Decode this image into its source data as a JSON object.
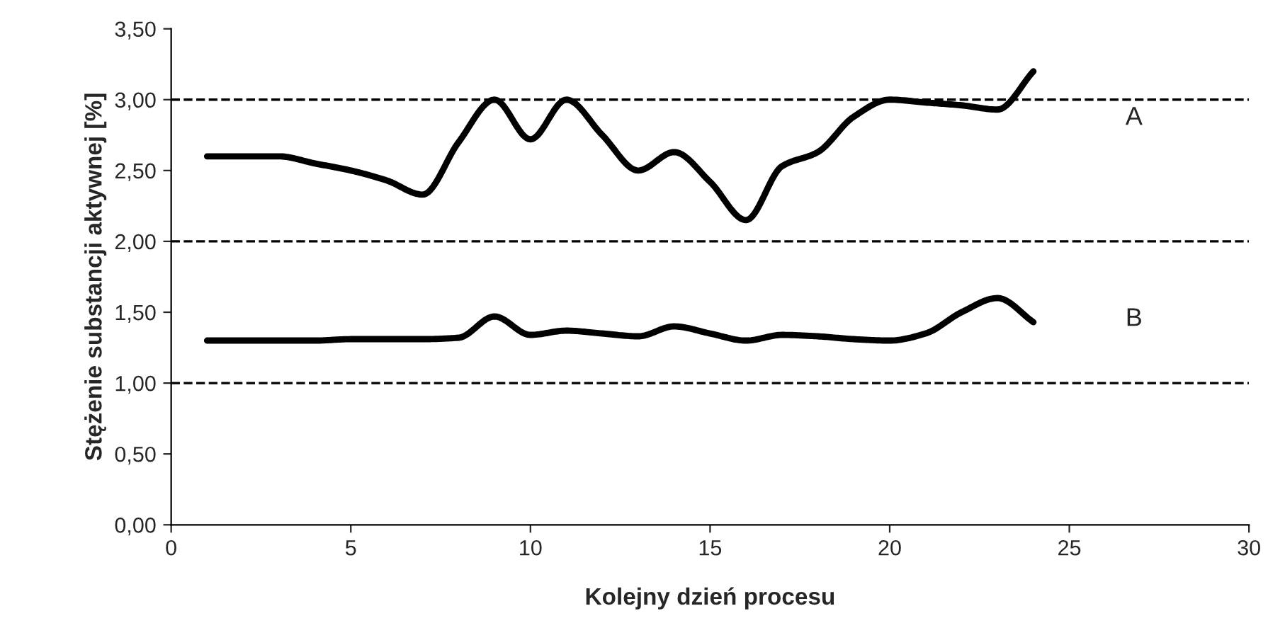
{
  "chart_data": {
    "type": "line",
    "xlabel": "Kolejny dzień procesu",
    "ylabel": "Stężenie substancji aktywnej [%]",
    "x": [
      1,
      2,
      3,
      4,
      5,
      6,
      7,
      8,
      9,
      10,
      11,
      12,
      13,
      14,
      15,
      16,
      17,
      18,
      19,
      20,
      21,
      22,
      23,
      24
    ],
    "series": [
      {
        "name": "A",
        "color": "#000000",
        "values": [
          2.6,
          2.6,
          2.6,
          2.55,
          2.5,
          2.43,
          2.33,
          2.7,
          3.0,
          2.72,
          3.0,
          2.75,
          2.5,
          2.63,
          2.42,
          2.15,
          2.53,
          2.63,
          2.88,
          3.0,
          2.98,
          2.96,
          2.93,
          3.2
        ]
      },
      {
        "name": "B",
        "color": "#000000",
        "values": [
          1.3,
          1.3,
          1.3,
          1.3,
          1.31,
          1.31,
          1.31,
          1.32,
          1.47,
          1.34,
          1.37,
          1.35,
          1.33,
          1.4,
          1.35,
          1.3,
          1.34,
          1.33,
          1.31,
          1.3,
          1.35,
          1.5,
          1.6,
          1.43
        ]
      }
    ],
    "xlim": [
      0,
      30
    ],
    "xticks": [
      0,
      5,
      10,
      15,
      20,
      25,
      30
    ],
    "ylim": [
      0,
      3.5
    ],
    "yticks": [
      {
        "value": 0,
        "label": "0,00"
      },
      {
        "value": 0.5,
        "label": "0,50"
      },
      {
        "value": 1,
        "label": "1,00"
      },
      {
        "value": 1.5,
        "label": "1,50"
      },
      {
        "value": 2,
        "label": "2,00"
      },
      {
        "value": 2.5,
        "label": "2,50"
      },
      {
        "value": 3,
        "label": "3,00"
      },
      {
        "value": 3.5,
        "label": "3,50"
      }
    ],
    "ref_lines": [
      {
        "axis": "y",
        "value": 1,
        "color": "#000000",
        "line_style": "dashed"
      },
      {
        "axis": "y",
        "value": 2,
        "color": "#000000",
        "line_style": "dashed"
      },
      {
        "axis": "y",
        "value": 3,
        "color": "#000000",
        "line_style": "dashed"
      }
    ],
    "grid": false,
    "legend": false,
    "marker": "none",
    "line_style": "solid"
  }
}
